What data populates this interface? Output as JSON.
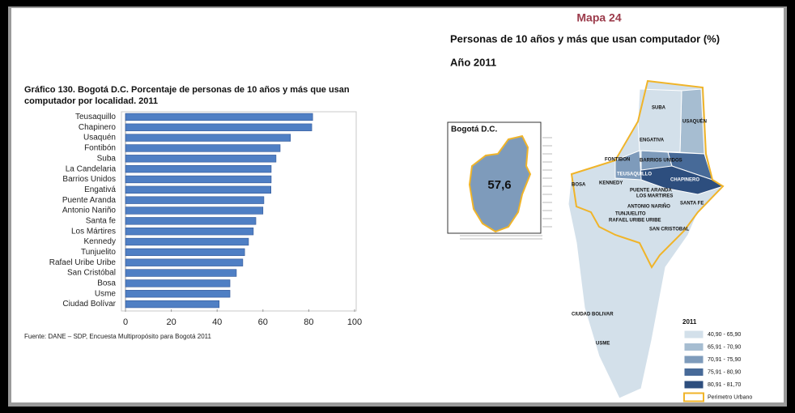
{
  "chart_data": {
    "type": "bar",
    "orientation": "horizontal",
    "title": "Gráfico 130.  Bogotá D.C. Porcentaje de personas de 10 años y más que usan computador por localidad. 2011",
    "categories": [
      "Teusaquillo",
      "Chapinero",
      "Usaquén",
      "Fontibón",
      "Suba",
      "La Candelaria",
      "Barrios Unidos",
      "Engativá",
      "Puente Aranda",
      "Antonio Nariño",
      "Santa fe",
      "Los Mártires",
      "Kennedy",
      "Tunjuelito",
      "Rafael Uribe Uribe",
      "San Cristóbal",
      "Bosa",
      "Usme",
      "Ciudad Bolívar"
    ],
    "values": [
      81.7,
      81.3,
      72,
      67.5,
      65.7,
      63.6,
      63.6,
      63.5,
      60.4,
      60,
      56.9,
      55.8,
      53.7,
      52,
      51.2,
      48.4,
      45.6,
      45.6,
      40.9
    ],
    "color": "#4f7fc4",
    "xlim": [
      0,
      100
    ],
    "xticks": [
      0,
      20,
      40,
      60,
      80,
      100
    ],
    "source": "Fuente: DANE – SDP, Encuesta Multipropósito para Bogotá 2011"
  },
  "map": {
    "heading": "Mapa 24",
    "title": "Personas de 10 años y más que usan computador (%)",
    "subtitle": "Año 2011",
    "inset": {
      "title": "Bogotá D.C.",
      "value": "57,6"
    },
    "labels": [
      "SUBA",
      "USAQUÉN",
      "ENGATIVA",
      "FONTIBON",
      "BARRIOS UNIDOS",
      "TEUSAQUILLO",
      "CHAPINERO",
      "BOSA",
      "KENNEDY",
      "PUENTE ARANDA",
      "LOS MARTIRES",
      "SANTA FE",
      "ANTONIO NARIÑO",
      "TUNJUELITO",
      "RAFAEL URIBE URIBE",
      "SAN CRISTOBAL",
      "CIUDAD BOLIVAR",
      "USME"
    ],
    "legend": {
      "title": "2011",
      "items": [
        {
          "label": "40,90 - 65,90",
          "color": "#d3e0ea"
        },
        {
          "label": "65,91 - 70,90",
          "color": "#a6bdd1"
        },
        {
          "label": "70,91 - 75,90",
          "color": "#7e9bbb"
        },
        {
          "label": "75,91 - 80,90",
          "color": "#476a98"
        },
        {
          "label": "80,91 - 81,70",
          "color": "#2d4e7e"
        },
        {
          "label": "Perimetro Urbano",
          "color": "#f0b429"
        }
      ]
    }
  }
}
